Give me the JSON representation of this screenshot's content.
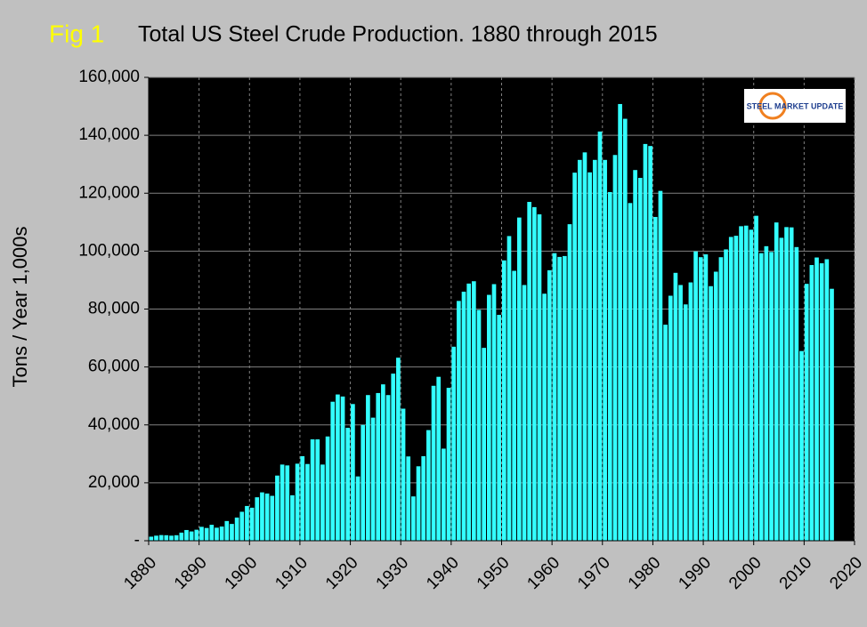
{
  "chart_data": {
    "type": "bar",
    "figure_label": "Fig 1",
    "title": "Total US Steel Crude Production. 1880 through 2015",
    "y_label": "Tons / Year 1,000s",
    "logo": "STEEL MARKET UPDATE",
    "color": "#33ffff",
    "grid": true,
    "x": [
      1880,
      1881,
      1882,
      1883,
      1884,
      1885,
      1886,
      1887,
      1888,
      1889,
      1890,
      1891,
      1892,
      1893,
      1894,
      1895,
      1896,
      1897,
      1898,
      1899,
      1900,
      1901,
      1902,
      1903,
      1904,
      1905,
      1906,
      1907,
      1908,
      1909,
      1910,
      1911,
      1912,
      1913,
      1914,
      1915,
      1916,
      1917,
      1918,
      1919,
      1920,
      1921,
      1922,
      1923,
      1924,
      1925,
      1926,
      1927,
      1928,
      1929,
      1930,
      1931,
      1932,
      1933,
      1934,
      1935,
      1936,
      1937,
      1938,
      1939,
      1940,
      1941,
      1942,
      1943,
      1944,
      1945,
      1946,
      1947,
      1948,
      1949,
      1950,
      1951,
      1952,
      1953,
      1954,
      1955,
      1956,
      1957,
      1958,
      1959,
      1960,
      1961,
      1962,
      1963,
      1964,
      1965,
      1966,
      1967,
      1968,
      1969,
      1970,
      1971,
      1972,
      1973,
      1974,
      1975,
      1976,
      1977,
      1978,
      1979,
      1980,
      1981,
      1982,
      1983,
      1984,
      1985,
      1986,
      1987,
      1988,
      1989,
      1990,
      1991,
      1992,
      1993,
      1994,
      1995,
      1996,
      1997,
      1998,
      1999,
      2000,
      2001,
      2002,
      2003,
      2004,
      2005,
      2006,
      2007,
      2008,
      2009,
      2010,
      2011,
      2012,
      2013,
      2014,
      2015
    ],
    "values": [
      1400,
      1750,
      1950,
      1900,
      1750,
      1900,
      2800,
      3700,
      3200,
      3800,
      4800,
      4400,
      5500,
      4500,
      4900,
      6800,
      5800,
      8000,
      10000,
      12000,
      11400,
      15000,
      16700,
      16300,
      15500,
      22500,
      26300,
      26000,
      15700,
      26600,
      29200,
      26500,
      35000,
      35000,
      26300,
      36000,
      48000,
      50500,
      49800,
      39000,
      47200,
      22200,
      40000,
      50300,
      42500,
      51000,
      54000,
      50300,
      57700,
      63200,
      45600,
      29100,
      15300,
      25700,
      29200,
      38200,
      53500,
      56600,
      31800,
      52800,
      67000,
      82800,
      86000,
      88800,
      89600,
      79700,
      66600,
      84900,
      88600,
      78000,
      96800,
      105200,
      93200,
      111600,
      88300,
      117000,
      115200,
      112700,
      85300,
      93400,
      99300,
      98000,
      98300,
      109300,
      127100,
      131500,
      134100,
      127200,
      131500,
      141300,
      131500,
      120400,
      133200,
      150800,
      145700,
      116600,
      128000,
      125300,
      137000,
      136300,
      111800,
      120800,
      74600,
      84600,
      92500,
      88300,
      81600,
      89200,
      99900,
      97900,
      98900,
      87900,
      92900,
      97900,
      100600,
      104900,
      105300,
      108600,
      108800,
      107400,
      112200,
      99300,
      101700,
      99700,
      109900,
      104600,
      108300,
      108200,
      101400,
      65500,
      88700,
      95200,
      97800,
      95800,
      97200,
      87000
    ],
    "xlim": [
      1880,
      2020
    ],
    "xticks": [
      1880,
      1890,
      1900,
      1910,
      1920,
      1930,
      1940,
      1950,
      1960,
      1970,
      1980,
      1990,
      2000,
      2010,
      2020
    ],
    "ylim": [
      0,
      160000
    ],
    "yticks": [
      {
        "value": 0,
        "label": "-"
      },
      {
        "value": 20000,
        "label": "20,000"
      },
      {
        "value": 40000,
        "label": "40,000"
      },
      {
        "value": 60000,
        "label": "60,000"
      },
      {
        "value": 80000,
        "label": "80,000"
      },
      {
        "value": 100000,
        "label": "100,000"
      },
      {
        "value": 120000,
        "label": "120,000"
      },
      {
        "value": 140000,
        "label": "140,000"
      },
      {
        "value": 160000,
        "label": "160,000"
      }
    ]
  }
}
